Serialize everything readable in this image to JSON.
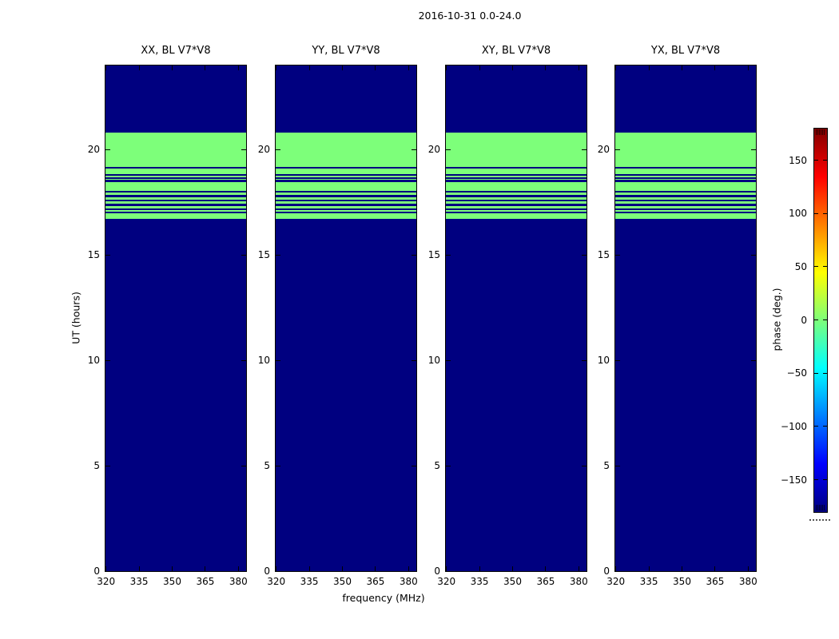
{
  "chart_data": {
    "type": "heatmap",
    "title": "2016-10-31 0.0-24.0",
    "xlabel": "frequency (MHz)",
    "ylabel": "UT (hours)",
    "panels": [
      {
        "title": "XX, BL V7*V8"
      },
      {
        "title": "YY, BL V7*V8"
      },
      {
        "title": "XY, BL V7*V8"
      },
      {
        "title": "YX, BL V7*V8"
      }
    ],
    "x_axis": {
      "range": [
        319.75,
        383.5
      ],
      "ticks": [
        320,
        335,
        350,
        365,
        380
      ]
    },
    "y_axis": {
      "range": [
        0,
        24
      ],
      "ticks": [
        0,
        5,
        10,
        15,
        20
      ]
    },
    "regions": [
      {
        "ut_from": 0.0,
        "ut_to": 16.71,
        "phase_deg": -180,
        "color": "#000080"
      },
      {
        "ut_from": 16.71,
        "ut_to": 20.79,
        "phase_deg": 0,
        "color": "#7dff7a"
      },
      {
        "ut_from": 20.79,
        "ut_to": 24.0,
        "phase_deg": -180,
        "color": "#000080"
      }
    ],
    "gap_stripes": {
      "ut_centers": [
        19.13,
        18.8,
        18.63,
        18.51,
        17.99,
        17.78,
        17.58,
        17.37,
        17.17,
        17.0
      ],
      "half_height_ut": 0.045,
      "phase_deg": -180,
      "color": "#000080"
    },
    "colorbar": {
      "label": "phase (deg.)",
      "min": -180,
      "max": 180,
      "colormap": "jet",
      "ticks": [
        {
          "value": 150,
          "label": "150"
        },
        {
          "value": 100,
          "label": "100"
        },
        {
          "value": 50,
          "label": "50"
        },
        {
          "value": 0,
          "label": "0"
        },
        {
          "value": -50,
          "label": "−50"
        },
        {
          "value": -100,
          "label": "−100"
        },
        {
          "value": -150,
          "label": "−150"
        }
      ],
      "gradient_stops": [
        {
          "pos": 0.0,
          "color": "#000080"
        },
        {
          "pos": 0.125,
          "color": "#0000ff"
        },
        {
          "pos": 0.375,
          "color": "#00ffff"
        },
        {
          "pos": 0.5,
          "color": "#7dff7a"
        },
        {
          "pos": 0.625,
          "color": "#ffff00"
        },
        {
          "pos": 0.875,
          "color": "#ff0000"
        },
        {
          "pos": 1.0,
          "color": "#800000"
        }
      ]
    }
  },
  "colors": {
    "background": "#ffffff",
    "axis": "#000000"
  }
}
